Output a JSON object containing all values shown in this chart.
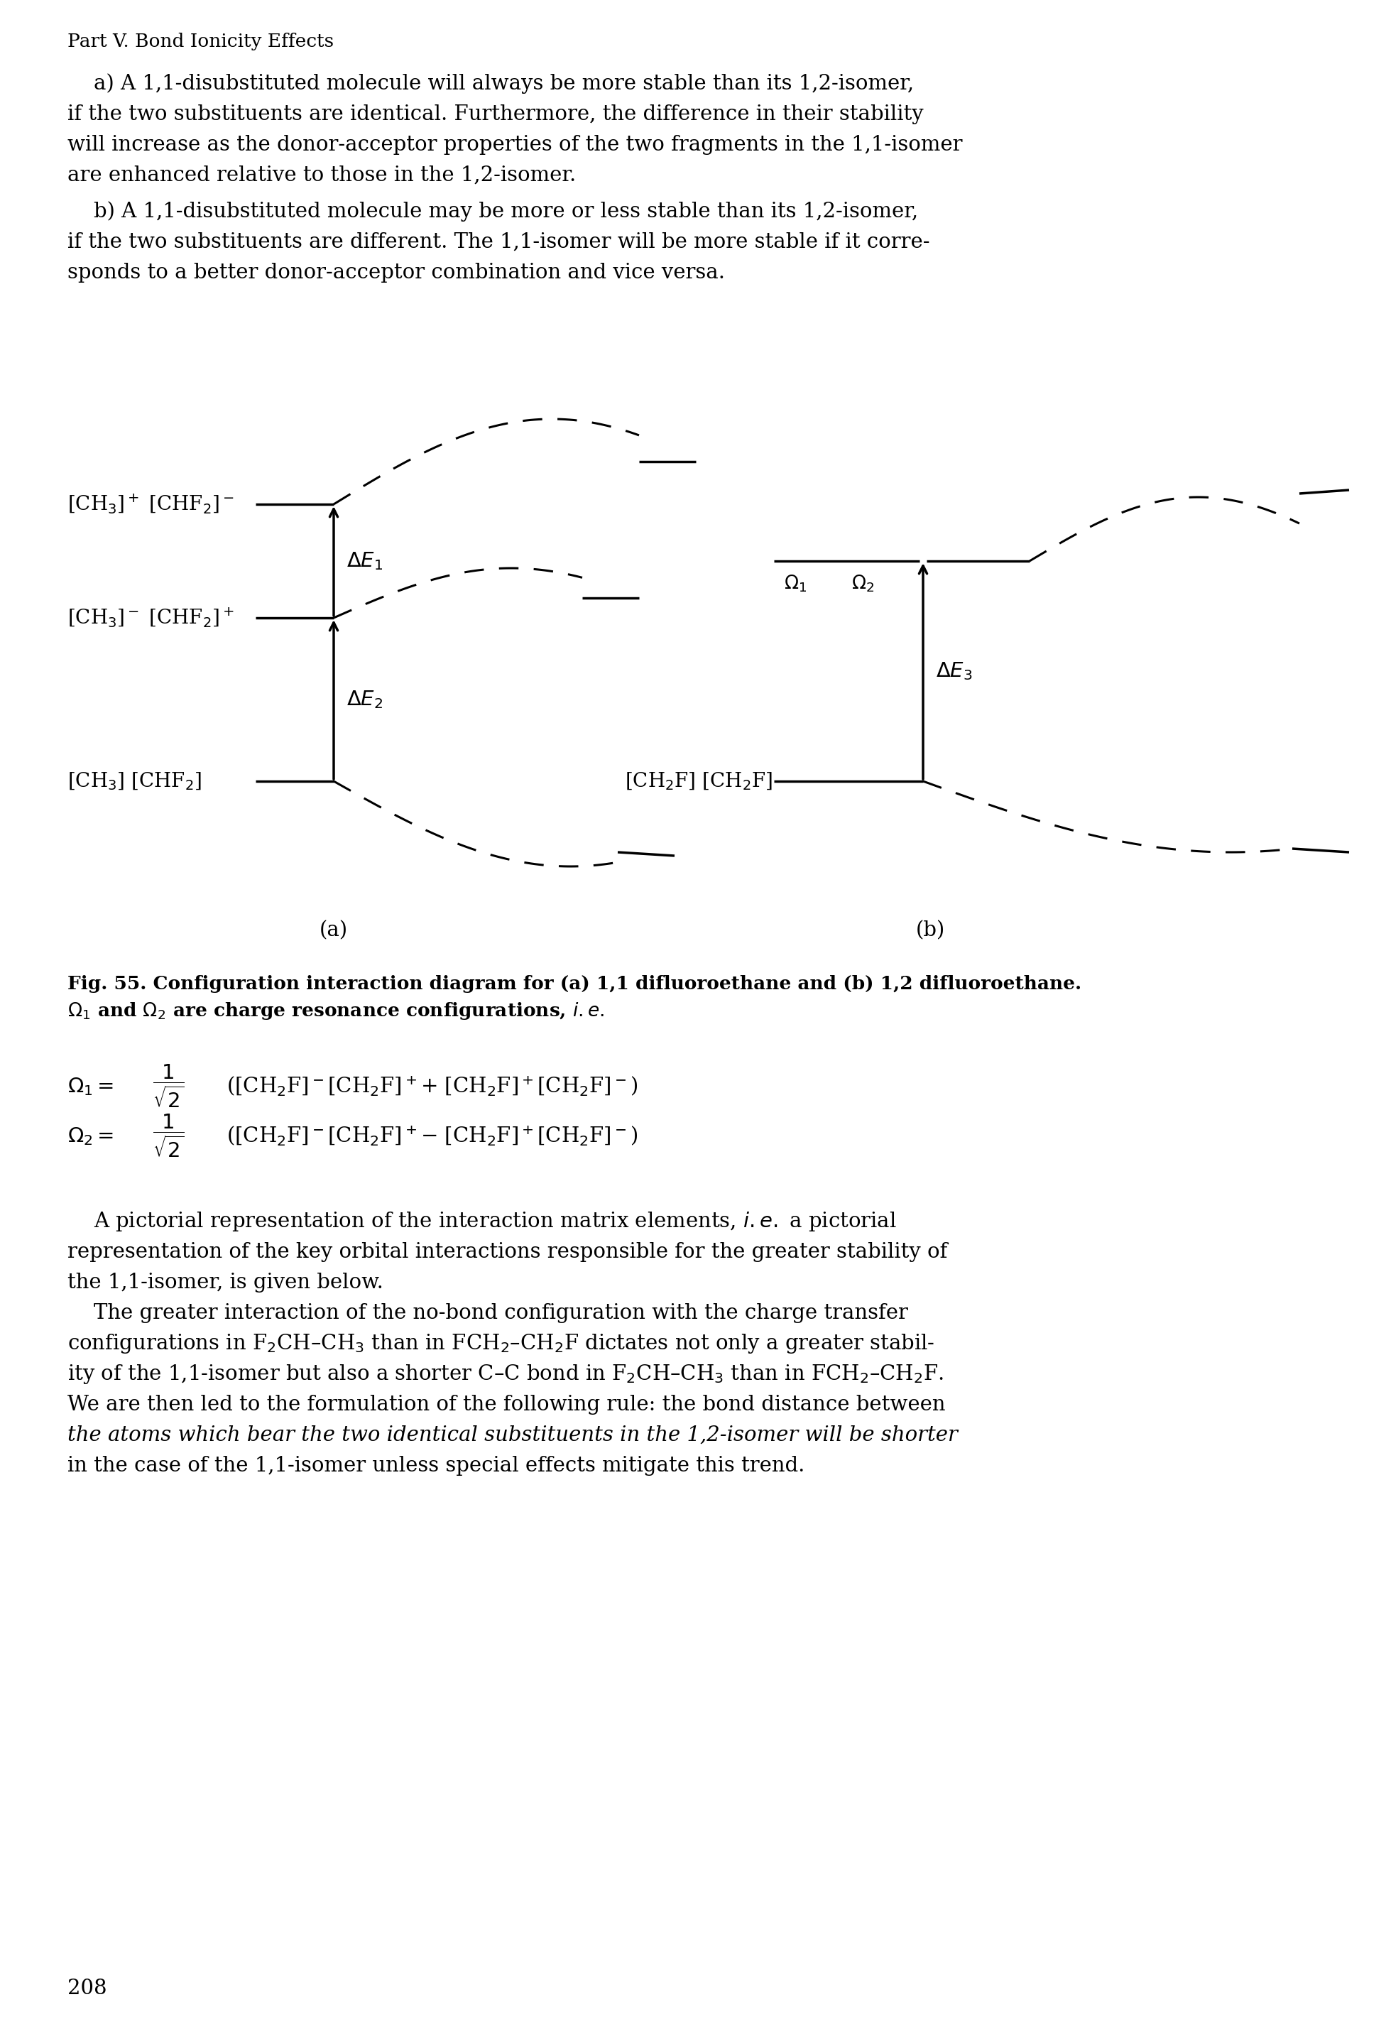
{
  "page_header": "Part V. Bond Ionicity Effects",
  "bg_color": "#ffffff",
  "text_color": "#000000",
  "lines_a": [
    "    a) A 1,1-disubstituted molecule will always be more stable than its 1,2-isomer,",
    "if the two substituents are identical. Furthermore, the difference in their stability",
    "will increase as the donor-acceptor properties of the two fragments in the 1,1-isomer",
    "are enhanced relative to those in the 1,2-isomer."
  ],
  "lines_b": [
    "    b) A 1,1-disubstituted molecule may be more or less stable than its 1,2-isomer,",
    "if the two substituents are different. The 1,1-isomer will be more stable if it corre-",
    "sponds to a better donor-acceptor combination and vice versa."
  ],
  "caption_line1": "Fig. 55. Configuration interaction diagram for (a) 1,1 difluoroethane and (b) 1,2 difluoroethane.",
  "caption_line2": "$\\Omega_1$ and $\\Omega_2$ are charge resonance configurations, $i.e.$",
  "main_para_lines": [
    "    A pictorial representation of the interaction matrix elements, $i.e.$ a pictorial",
    "representation of the key orbital interactions responsible for the greater stability of",
    "the 1,1-isomer, is given below.",
    "    The greater interaction of the no-bond configuration with the charge transfer",
    "configurations in F$_2$CH–CH$_3$ than in FCH$_2$–CH$_2$F dictates not only a greater stabil-",
    "ity of the 1,1-isomer but also a shorter C–C bond in F$_2$CH–CH$_3$ than in FCH$_2$–CH$_2$F.",
    "We are then led to the formulation of the following rule: the bond distance between",
    "the atoms which bear the two identical substituents in the 1,2-isomer will be shorter",
    "in the case of the 1,1-isomer unless special effects mitigate this trend."
  ],
  "page_num": "208",
  "header_size": 19,
  "body_size": 21,
  "caption_size": 19,
  "eq_size": 21,
  "lh_body": 43,
  "lh_main": 43
}
